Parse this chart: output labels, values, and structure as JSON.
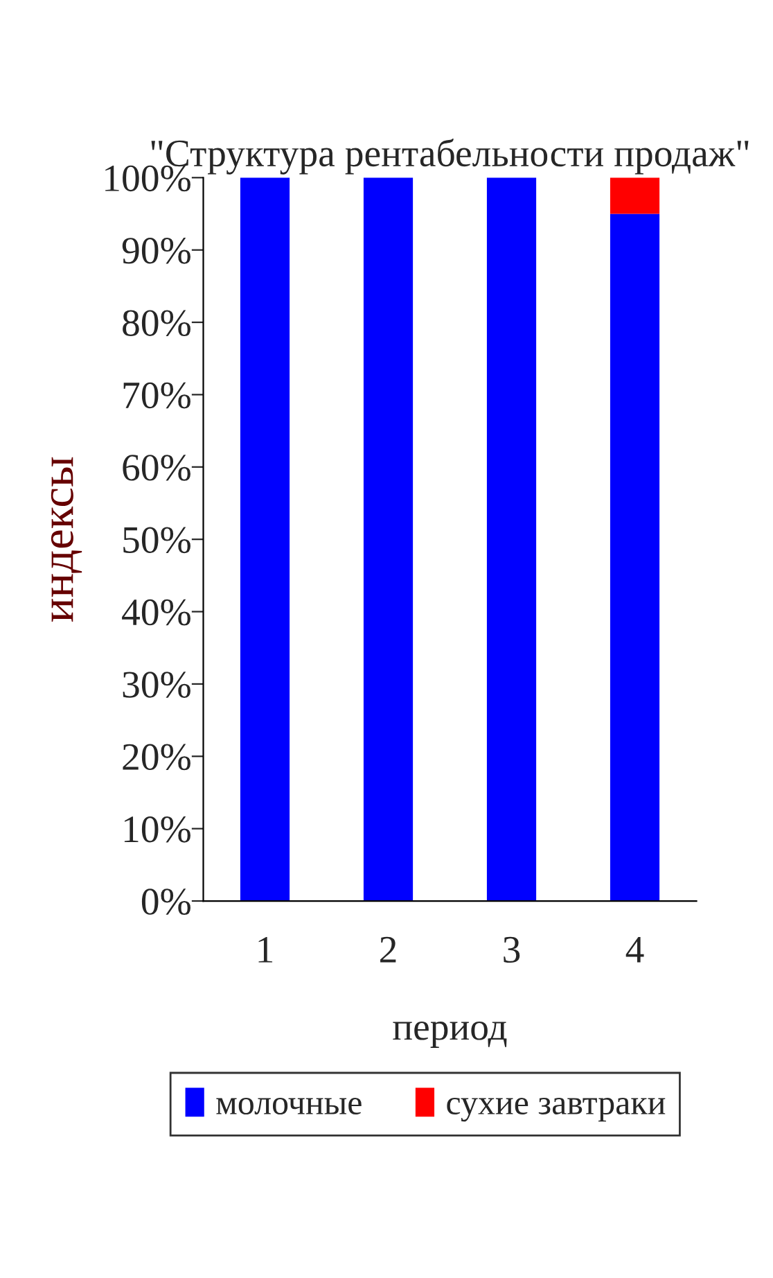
{
  "chart_data": {
    "type": "bar",
    "title": "\"Структура рентабельности продаж\"",
    "xlabel": "период",
    "ylabel": "индексы",
    "categories": [
      "1",
      "2",
      "3",
      "4"
    ],
    "stacked": true,
    "series": [
      {
        "name": "молочные",
        "color": "#0000ff",
        "values": [
          100,
          100,
          100,
          95
        ]
      },
      {
        "name": "сухие завтраки",
        "color": "#ff0000",
        "values": [
          0,
          0,
          0,
          5
        ]
      }
    ],
    "ylim": [
      0,
      100
    ],
    "yticks": [
      {
        "value": 0,
        "label": "0%"
      },
      {
        "value": 10,
        "label": "10%"
      },
      {
        "value": 20,
        "label": "20%"
      },
      {
        "value": 30,
        "label": "30%"
      },
      {
        "value": 40,
        "label": "40%"
      },
      {
        "value": 50,
        "label": "50%"
      },
      {
        "value": 60,
        "label": "60%"
      },
      {
        "value": 70,
        "label": "70%"
      },
      {
        "value": 80,
        "label": "80%"
      },
      {
        "value": 90,
        "label": "90%"
      },
      {
        "value": 100,
        "label": "100%"
      }
    ],
    "grid": false,
    "legend": "bottom"
  }
}
